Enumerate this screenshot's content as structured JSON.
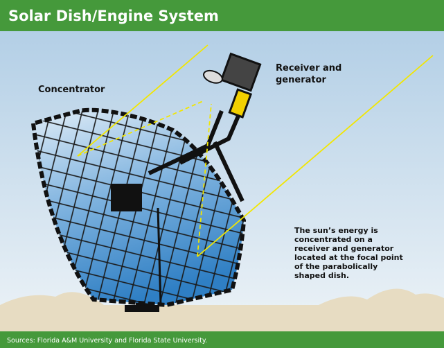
{
  "header": {
    "title": "Solar Dish/Engine System"
  },
  "labels": {
    "concentrator": "Concentrator",
    "receiver": [
      "Receiver and",
      "generator"
    ]
  },
  "description": [
    "The sun’s energy is",
    "concentrated on a",
    "receiver and generator",
    "located at the focal point",
    "of the parabolically",
    "shaped dish."
  ],
  "footer": {
    "source": "Sources: Florida A&M University and Florida State University."
  }
}
